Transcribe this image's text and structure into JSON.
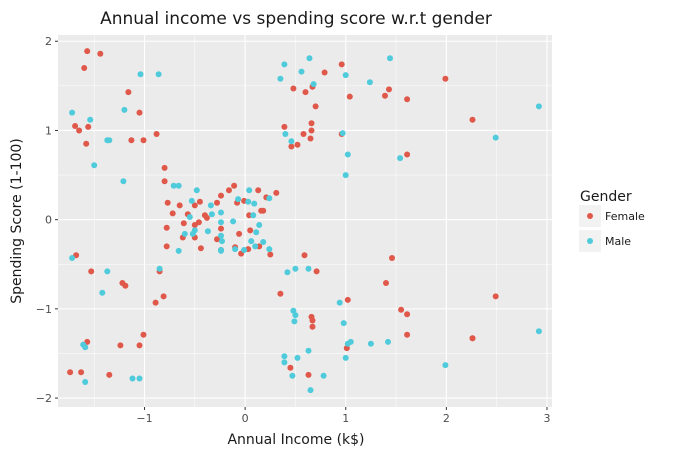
{
  "colors": {
    "panel_bg": "#EBEBEB",
    "grid_major": "#FFFFFF",
    "female": "#E0584A",
    "male": "#4FCBDB",
    "text": "#1A1A1A",
    "tick_text": "#4D4D4D"
  },
  "chart_data": {
    "type": "scatter",
    "title": "Annual income vs spending score w.r.t gender",
    "xlabel": "Annual Income (k$)",
    "ylabel": "Spending Score (1-100)",
    "xlim": [
      -1.86,
      3.05
    ],
    "ylim": [
      -2.1,
      2.07
    ],
    "x_ticks": [
      -1,
      0,
      1,
      2,
      3
    ],
    "x_tick_labels": [
      "−1",
      "0",
      "1",
      "2",
      "3"
    ],
    "y_ticks": [
      -2,
      -1,
      0,
      1,
      2
    ],
    "y_tick_labels": [
      "−2",
      "−1",
      "0",
      "1",
      "2"
    ],
    "grid": true,
    "legend": {
      "title": "Gender",
      "position": "right",
      "entries": [
        "Female",
        "Male"
      ]
    },
    "series": [
      {
        "name": "Female",
        "points": [
          [
            -1.57,
            1.89
          ],
          [
            -1.44,
            1.86
          ],
          [
            -1.6,
            1.7
          ],
          [
            -1.16,
            1.43
          ],
          [
            -1.05,
            1.2
          ],
          [
            -0.88,
            0.96
          ],
          [
            -1.69,
            1.05
          ],
          [
            -1.65,
            1.0
          ],
          [
            -1.56,
            1.04
          ],
          [
            -1.58,
            0.85
          ],
          [
            -1.01,
            0.89
          ],
          [
            -1.13,
            0.89
          ],
          [
            -0.8,
            0.58
          ],
          [
            -0.8,
            0.43
          ],
          [
            -0.77,
            0.19
          ],
          [
            -0.72,
            0.07
          ],
          [
            -0.65,
            0.16
          ],
          [
            -0.57,
            0.06
          ],
          [
            -0.5,
            0.16
          ],
          [
            -0.45,
            0.2
          ],
          [
            -0.61,
            -0.04
          ],
          [
            -0.46,
            -0.03
          ],
          [
            -0.38,
            0.02
          ],
          [
            -0.28,
            0.19
          ],
          [
            -0.24,
            0.27
          ],
          [
            -0.16,
            0.33
          ],
          [
            -0.11,
            0.38
          ],
          [
            -0.08,
            0.19
          ],
          [
            -0.01,
            0.21
          ],
          [
            0.04,
            0.05
          ],
          [
            0.13,
            0.33
          ],
          [
            0.21,
            0.25
          ],
          [
            0.31,
            0.3
          ],
          [
            0.18,
            0.1
          ],
          [
            0.05,
            -0.12
          ],
          [
            -0.06,
            -0.16
          ],
          [
            -0.24,
            -0.1
          ],
          [
            -0.28,
            -0.22
          ],
          [
            -0.5,
            -0.06
          ],
          [
            -0.5,
            -0.2
          ],
          [
            -0.62,
            -0.2
          ],
          [
            -0.78,
            -0.3
          ],
          [
            -0.78,
            -0.09
          ],
          [
            -0.44,
            -0.32
          ],
          [
            -0.24,
            -0.34
          ],
          [
            -0.1,
            -0.31
          ],
          [
            -0.04,
            -0.38
          ],
          [
            0.03,
            -0.33
          ],
          [
            0.14,
            -0.3
          ],
          [
            0.25,
            -0.39
          ],
          [
            -0.4,
            0.05
          ],
          [
            0.16,
            0.1
          ],
          [
            0.39,
            1.04
          ],
          [
            0.46,
            0.82
          ],
          [
            0.52,
            0.84
          ],
          [
            0.48,
            1.47
          ],
          [
            0.6,
            1.43
          ],
          [
            0.67,
            1.49
          ],
          [
            0.7,
            1.27
          ],
          [
            0.66,
            1.08
          ],
          [
            0.66,
            1.0
          ],
          [
            0.65,
            0.91
          ],
          [
            0.58,
            0.96
          ],
          [
            0.79,
            1.65
          ],
          [
            0.96,
            1.74
          ],
          [
            0.96,
            0.96
          ],
          [
            1.04,
            1.38
          ],
          [
            1.39,
            1.39
          ],
          [
            1.43,
            1.46
          ],
          [
            1.61,
            1.35
          ],
          [
            1.61,
            0.73
          ],
          [
            1.99,
            1.58
          ],
          [
            2.26,
            1.12
          ],
          [
            -1.74,
            -1.71
          ],
          [
            -1.63,
            -1.71
          ],
          [
            -1.57,
            -1.37
          ],
          [
            -1.35,
            -1.74
          ],
          [
            -1.24,
            -1.41
          ],
          [
            -1.05,
            -1.41
          ],
          [
            -1.01,
            -1.29
          ],
          [
            -1.19,
            -0.74
          ],
          [
            -1.22,
            -0.71
          ],
          [
            -0.89,
            -0.93
          ],
          [
            -0.81,
            -0.86
          ],
          [
            -0.85,
            -0.58
          ],
          [
            -1.53,
            -0.58
          ],
          [
            -1.68,
            -0.4
          ],
          [
            0.35,
            -0.83
          ],
          [
            0.59,
            -0.4
          ],
          [
            0.45,
            -1.66
          ],
          [
            0.63,
            -1.74
          ],
          [
            0.66,
            -1.09
          ],
          [
            0.67,
            -1.13
          ],
          [
            0.67,
            -1.2
          ],
          [
            0.71,
            -0.58
          ],
          [
            1.02,
            -0.9
          ],
          [
            1.01,
            -1.44
          ],
          [
            1.4,
            -0.71
          ],
          [
            1.46,
            -0.43
          ],
          [
            1.55,
            -1.01
          ],
          [
            1.61,
            -1.06
          ],
          [
            1.61,
            -1.29
          ],
          [
            2.26,
            -1.33
          ],
          [
            2.49,
            -0.86
          ],
          [
            2.26,
            -1.33
          ]
        ]
      },
      {
        "name": "Male",
        "points": [
          [
            -1.72,
            1.2
          ],
          [
            -1.54,
            1.12
          ],
          [
            -1.04,
            1.63
          ],
          [
            -0.86,
            1.63
          ],
          [
            -1.2,
            1.23
          ],
          [
            -1.35,
            0.89
          ],
          [
            -1.37,
            0.89
          ],
          [
            -1.5,
            0.61
          ],
          [
            -1.21,
            0.43
          ],
          [
            -0.71,
            0.38
          ],
          [
            -0.66,
            0.38
          ],
          [
            -0.48,
            0.33
          ],
          [
            -0.53,
            0.21
          ],
          [
            -0.55,
            0.03
          ],
          [
            -0.34,
            0.16
          ],
          [
            -0.33,
            0.06
          ],
          [
            -0.24,
            0.08
          ],
          [
            -0.24,
            -0.03
          ],
          [
            -0.24,
            -0.18
          ],
          [
            -0.12,
            -0.02
          ],
          [
            -0.07,
            0.23
          ],
          [
            0.03,
            0.2
          ],
          [
            0.04,
            0.33
          ],
          [
            0.08,
            0.05
          ],
          [
            0.11,
            -0.14
          ],
          [
            0.14,
            -0.06
          ],
          [
            0.24,
            0.24
          ],
          [
            0.06,
            -0.24
          ],
          [
            -0.01,
            -0.34
          ],
          [
            -0.1,
            -0.33
          ],
          [
            -0.24,
            -0.34
          ],
          [
            -0.37,
            -0.13
          ],
          [
            -0.5,
            -0.12
          ],
          [
            -0.6,
            -0.16
          ],
          [
            -0.66,
            -0.35
          ],
          [
            0.09,
            0.18
          ],
          [
            0.18,
            -0.25
          ],
          [
            -0.52,
            -0.16
          ],
          [
            -0.23,
            -0.24
          ],
          [
            -0.24,
            -0.35
          ],
          [
            0.24,
            -0.33
          ],
          [
            0.1,
            -0.3
          ],
          [
            0.35,
            1.58
          ],
          [
            0.39,
            1.74
          ],
          [
            0.56,
            1.66
          ],
          [
            0.64,
            1.81
          ],
          [
            0.68,
            1.52
          ],
          [
            1.0,
            1.62
          ],
          [
            0.97,
            0.97
          ],
          [
            1.24,
            1.54
          ],
          [
            1.44,
            1.81
          ],
          [
            1.54,
            0.69
          ],
          [
            1.02,
            0.73
          ],
          [
            0.4,
            0.96
          ],
          [
            0.46,
            0.88
          ],
          [
            1.0,
            0.5
          ],
          [
            2.92,
            1.27
          ],
          [
            2.49,
            0.92
          ],
          [
            -1.72,
            -0.43
          ],
          [
            -1.37,
            -0.58
          ],
          [
            -0.85,
            -0.55
          ],
          [
            -1.42,
            -0.82
          ],
          [
            -1.61,
            -1.4
          ],
          [
            -1.59,
            -1.43
          ],
          [
            -1.59,
            -1.82
          ],
          [
            -1.12,
            -1.78
          ],
          [
            -1.05,
            -1.78
          ],
          [
            0.42,
            -0.59
          ],
          [
            0.5,
            -0.55
          ],
          [
            0.48,
            -1.02
          ],
          [
            0.5,
            -1.07
          ],
          [
            0.49,
            -1.14
          ],
          [
            0.39,
            -1.53
          ],
          [
            0.39,
            -1.6
          ],
          [
            0.47,
            -1.75
          ],
          [
            0.52,
            -1.55
          ],
          [
            0.63,
            -1.47
          ],
          [
            0.65,
            -1.91
          ],
          [
            0.78,
            -1.75
          ],
          [
            0.63,
            -0.55
          ],
          [
            0.94,
            -0.93
          ],
          [
            0.98,
            -1.16
          ],
          [
            1.02,
            -1.39
          ],
          [
            1.0,
            -1.55
          ],
          [
            1.05,
            -1.37
          ],
          [
            1.25,
            -1.39
          ],
          [
            1.42,
            -1.37
          ],
          [
            1.99,
            -1.63
          ],
          [
            2.92,
            -1.25
          ]
        ]
      }
    ]
  }
}
